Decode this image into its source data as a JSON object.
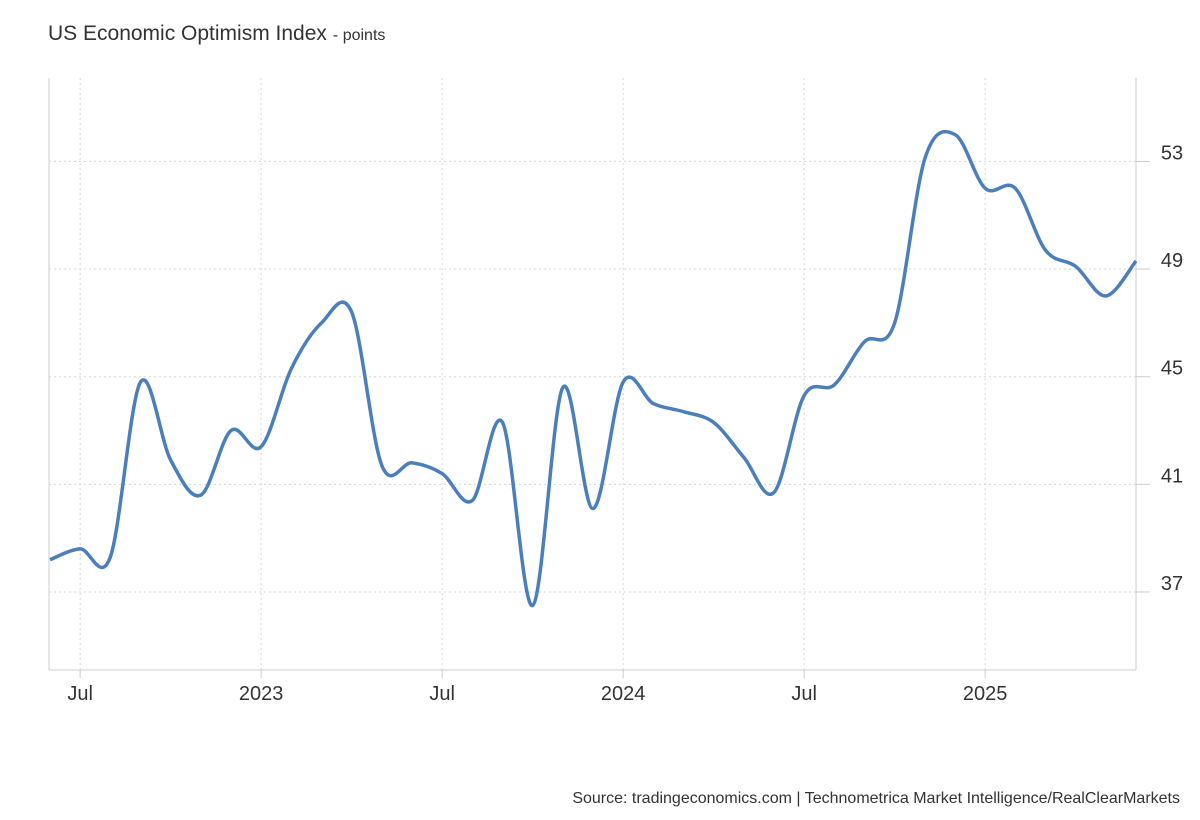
{
  "chart_data": {
    "type": "line",
    "title": "US Economic Optimism Index",
    "subtitle": "- points",
    "source": "Source: tradingeconomics.com | Technometrica Market Intelligence/RealClearMarkets",
    "categories": [
      null,
      "Jul",
      null,
      null,
      null,
      null,
      null,
      "2023",
      null,
      null,
      null,
      null,
      null,
      "Jul",
      null,
      null,
      null,
      null,
      null,
      "2024",
      null,
      null,
      null,
      null,
      null,
      "Jul",
      null,
      null,
      null,
      null,
      null,
      "2025",
      null,
      null,
      null,
      null,
      null
    ],
    "series": [
      {
        "name": "US Economic Optimism Index",
        "color": "#4b7fbb",
        "values": [
          38.2,
          38.6,
          38.3,
          44.8,
          41.9,
          40.6,
          43.0,
          42.4,
          45.3,
          47.0,
          47.4,
          41.7,
          41.8,
          41.4,
          40.4,
          43.3,
          36.5,
          44.6,
          40.1,
          44.8,
          44.0,
          43.7,
          43.3,
          42.0,
          40.7,
          44.3,
          44.7,
          46.3,
          47.0,
          53.1,
          54.0,
          52.0,
          52.0,
          49.7,
          49.1,
          48.0,
          49.3
        ]
      }
    ],
    "ylim": [
      34.1,
      56.1
    ],
    "yticks": [
      37,
      41,
      45,
      49,
      53
    ],
    "grid": true
  }
}
